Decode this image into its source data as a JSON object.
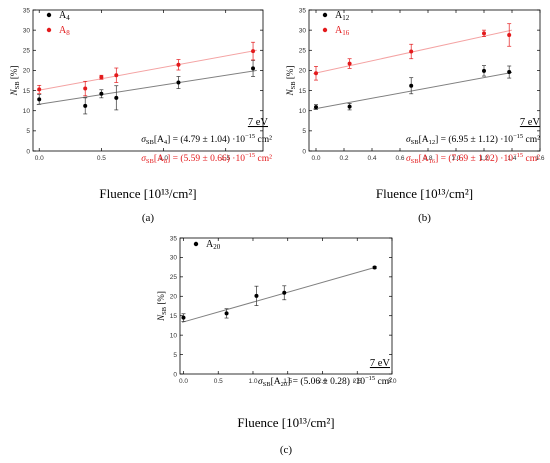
{
  "chart_data": [
    {
      "type": "scatter",
      "panel_label": "(a)",
      "xlabel": "Fluence [10¹³/cm²]",
      "ylabel": {
        "main": "N",
        "sub": "SB",
        "unit": " [%]"
      },
      "xlim": [
        -0.05,
        1.8
      ],
      "ylim": [
        0,
        35
      ],
      "xticks": [
        0.0,
        0.5,
        1.0,
        1.5
      ],
      "xtick_labels": [
        "0.0",
        "0.5",
        "1.0",
        "1.5"
      ],
      "yticks": [
        0,
        5,
        10,
        15,
        20,
        25,
        30,
        35
      ],
      "ytick_labels": [
        "0",
        "5",
        "10",
        "15",
        "20",
        "25",
        "30",
        "35"
      ],
      "legend_position": "top-left",
      "energy_label": "7 eV",
      "series": [
        {
          "name": {
            "main": "A",
            "sub": "4"
          },
          "color": "#000000",
          "line_color": "#808080",
          "x": [
            0.0,
            0.37,
            0.5,
            0.62,
            1.12,
            1.72
          ],
          "y": [
            12.8,
            11.2,
            14.2,
            13.2,
            17.0,
            20.5
          ],
          "err": [
            1.2,
            2.0,
            1.0,
            3.0,
            1.5,
            2.0
          ],
          "fit": {
            "x": [
              -0.02,
              1.75
            ],
            "y": [
              11.5,
              20.0
            ]
          },
          "annotation": {
            "prefix": "σ",
            "prefix_sub": "SB",
            "label": "[A",
            "label_sub": "4",
            "value": "] = (4.79 ± 1.04) ·10",
            "exp": "−15",
            "unit": " cm²"
          }
        },
        {
          "name": {
            "main": "A",
            "sub": "8"
          },
          "color": "#e31a1c",
          "line_color": "#f4a3a3",
          "x": [
            0.0,
            0.37,
            0.5,
            0.62,
            1.12,
            1.72
          ],
          "y": [
            15.3,
            15.5,
            18.3,
            18.8,
            21.4,
            24.8
          ],
          "err": [
            1.0,
            1.8,
            0.5,
            1.8,
            1.3,
            2.2
          ],
          "fit": {
            "x": [
              -0.02,
              1.75
            ],
            "y": [
              15.0,
              25.0
            ]
          },
          "annotation": {
            "prefix": "σ",
            "prefix_sub": "SB",
            "label": "[A",
            "label_sub": "8",
            "value": "] = (5.59 ± 0.66) ·10",
            "exp": "−15",
            "unit": " cm²"
          }
        }
      ]
    },
    {
      "type": "scatter",
      "panel_label": "(b)",
      "xlabel": "Fluence [10¹³/cm²]",
      "ylabel": {
        "main": "N",
        "sub": "SB",
        "unit": " [%]"
      },
      "xlim": [
        -0.05,
        1.6
      ],
      "ylim": [
        0,
        35
      ],
      "xticks": [
        0.0,
        0.2,
        0.4,
        0.6,
        0.8,
        1.0,
        1.2,
        1.4,
        1.6
      ],
      "xtick_labels": [
        "0.0",
        "0.2",
        "0.4",
        "0.6",
        "0.8",
        "1.0",
        "1.2",
        "1.4",
        "1.6"
      ],
      "yticks": [
        0,
        5,
        10,
        15,
        20,
        25,
        30,
        35
      ],
      "ytick_labels": [
        "0",
        "5",
        "10",
        "15",
        "20",
        "25",
        "30",
        "35"
      ],
      "legend_position": "top-left",
      "energy_label": "7 eV",
      "series": [
        {
          "name": {
            "main": "A",
            "sub": "12"
          },
          "color": "#000000",
          "line_color": "#808080",
          "x": [
            0.0,
            0.24,
            0.68,
            1.2,
            1.38
          ],
          "y": [
            10.9,
            11.0,
            16.2,
            19.9,
            19.6
          ],
          "err": [
            0.6,
            0.8,
            2.0,
            1.3,
            1.5
          ],
          "fit": {
            "x": [
              -0.02,
              1.4
            ],
            "y": [
              10.4,
              19.5
            ]
          },
          "annotation": {
            "prefix": "σ",
            "prefix_sub": "SB",
            "label": "[A",
            "label_sub": "12",
            "value": "] = (6.95 ± 1.12) ·10",
            "exp": "−15",
            "unit": " cm²"
          }
        },
        {
          "name": {
            "main": "A",
            "sub": "16"
          },
          "color": "#e31a1c",
          "line_color": "#f4a3a3",
          "x": [
            0.0,
            0.24,
            0.68,
            1.2,
            1.38
          ],
          "y": [
            19.3,
            21.7,
            24.7,
            29.2,
            28.8
          ],
          "err": [
            1.7,
            1.2,
            1.8,
            0.8,
            2.8
          ],
          "fit": {
            "x": [
              -0.02,
              1.4
            ],
            "y": [
              19.2,
              30.0
            ]
          },
          "annotation": {
            "prefix": "σ",
            "prefix_sub": "SB",
            "label": "[A",
            "label_sub": "16",
            "value": "] = (7.69 ± 1.02) ·10",
            "exp": "−15",
            "unit": " cm²"
          }
        }
      ]
    },
    {
      "type": "scatter",
      "panel_label": "(c)",
      "xlabel": "Fluence [10¹³/cm²]",
      "ylabel": {
        "main": "N",
        "sub": "SB",
        "unit": " [%]"
      },
      "xlim": [
        -0.05,
        3.0
      ],
      "ylim": [
        0,
        35
      ],
      "xticks": [
        0.0,
        0.5,
        1.0,
        1.5,
        2.0,
        2.5,
        3.0
      ],
      "xtick_labels": [
        "0.0",
        "0.5",
        "1.0",
        "1.5",
        "2.0",
        "2.5",
        "3.0"
      ],
      "yticks": [
        0,
        5,
        10,
        15,
        20,
        25,
        30,
        35
      ],
      "ytick_labels": [
        "0",
        "5",
        "10",
        "15",
        "20",
        "25",
        "30",
        "35"
      ],
      "legend_position": "top-left",
      "energy_label": "7 eV",
      "series": [
        {
          "name": {
            "main": "A",
            "sub": "20"
          },
          "color": "#000000",
          "line_color": "#808080",
          "x": [
            0.0,
            0.62,
            1.05,
            1.45,
            2.75
          ],
          "y": [
            14.5,
            15.6,
            20.1,
            20.9,
            27.4
          ],
          "err": [
            1.0,
            1.2,
            2.5,
            1.8,
            0.3
          ],
          "fit": {
            "x": [
              -0.02,
              2.75
            ],
            "y": [
              13.3,
              27.4
            ]
          },
          "annotation": {
            "prefix": "σ",
            "prefix_sub": "SB",
            "label": "[A",
            "label_sub": "20",
            "value": "] = (5.06 ± 0.28) ·10",
            "exp": "−15",
            "unit": " cm²"
          }
        }
      ]
    }
  ]
}
